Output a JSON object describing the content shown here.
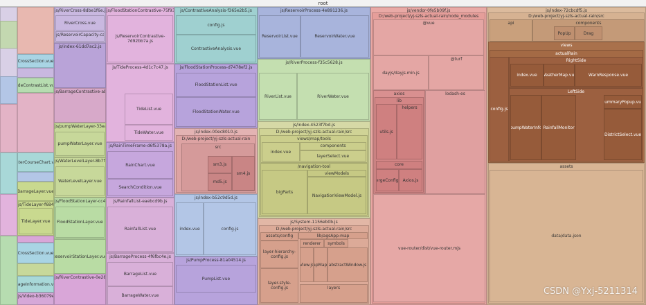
{
  "header": {
    "title": "root"
  },
  "modules": [
    "CrossSection.vue",
    "TideContrastList.vue",
    "WaterCourseChart.vue",
    "BarrageLayer.vue",
    "js/TideLayer-f684184e.js",
    "TideLayer.vue",
    "CrossSection.vue",
    "ImageInformation.vue",
    "js/Video-b36079e2.js",
    "js/RiverCross-8dbe1f6e.js",
    "RiverCross.vue",
    "js/ReservoirCapacity-ca0948f3.js",
    "js/index-61dd7ac2.js",
    "js/BarrageContrastive-ab4f72a1.js",
    "js/pumpWaterLayer-33ea4a97.js",
    "pumpWaterLayer.vue",
    "js/WaterLevelLayer-8b7f289c.js",
    "WaterLevelLayer.vue",
    "js/FloodStationLayer-cc4958f1.js",
    "FloodStationLayer.vue",
    "ReservoirStationLayer.vue",
    "js/RiverContrastive-0e2855e8.js",
    "js/FloodStationContrastive-75f93d56.js",
    "js/ReservoirContrastive-7d92bb7a.js",
    "js/TideProcess-4d1c7c47.js",
    "TideList.vue",
    "TideWater.vue",
    "js/RainTimeFrame-d6f5378a.js",
    "RainChart.vue",
    "SearchCondition.vue",
    "js/RainfallList-eaebcd9b.js",
    "RainfallList.vue",
    "js/BarrageProcess-4f6fbc4e.js",
    "BarrageList.vue",
    "BarrageWater.vue",
    "js/ContrastiveAnalysis-f365e2b5.js",
    "config.js",
    "ContrastiveAnalysis.vue",
    "js/FloodStationProcess-d7478ef2.js",
    "FloodStationList.vue",
    "FloodStationWater.vue",
    "js/index-00ec8010.js",
    "D:/web-project/yj-szls-actual-rain",
    "src",
    "sm3.js",
    "md5.js",
    "sm4.js",
    "js/index-b52c9d5d.js",
    "index.vue",
    "config.js",
    "js/PumpProcess-81a04514.js",
    "PumpList.vue",
    "js/ReservoirProcess-4e891236.js",
    "ReservoirList.vue",
    "ReservoirWater.vue",
    "js/RiverProcess-f35c5628.js",
    "RiverList.vue",
    "RiverWater.vue",
    "js/index-4523f7bd.js",
    "D:/web-project/yj-szls-actual-rain/src",
    "views/map/tools",
    "index.vue",
    "components",
    "layerSelect.vue",
    "/navigation-tool",
    "bigParts",
    "viewModels",
    "NavigationViewModel.js",
    "js/System-1156eb0b.js",
    "D:/web-project/yj-szls-actual-rain/src",
    "assets/config",
    "layer-hierarchy-config.js",
    "layer-style-config.js",
    "lib/agsApp-map",
    "renderer",
    "symbols",
    "View.js",
    "MapMap.js",
    "abstractWindow.js",
    "layers",
    "js/vendor-0fe5b09f.js",
    "D:/web-project/yj-szls-actual-rain/node_modules",
    "@vue",
    "dayjs/dayjs.min.js",
    "@turf",
    "axios",
    "lib",
    "utils.js",
    "helpers",
    "core",
    "mergeConfig.js",
    "Axios.js",
    "lodash-es",
    "vue-router/dist/vue-router.mjs",
    "js/index-72cbcdf5.js",
    "D:/web-project/yj-szls-actual-rain/src",
    "api",
    "components",
    "PopUp",
    "Drag",
    "views",
    "actualRain",
    "RightSide",
    "index.vue",
    "WeatherMap.vue",
    "WarnResponse.vue",
    "LeftSide",
    "pumpWaterInfo",
    "RainfallMonitor",
    "SummaryPopup.vue",
    "DistrictSelect.vue",
    "config.js",
    "assets",
    "data/data.json"
  ],
  "watermark": "CSDN @Yxj-5211314"
}
